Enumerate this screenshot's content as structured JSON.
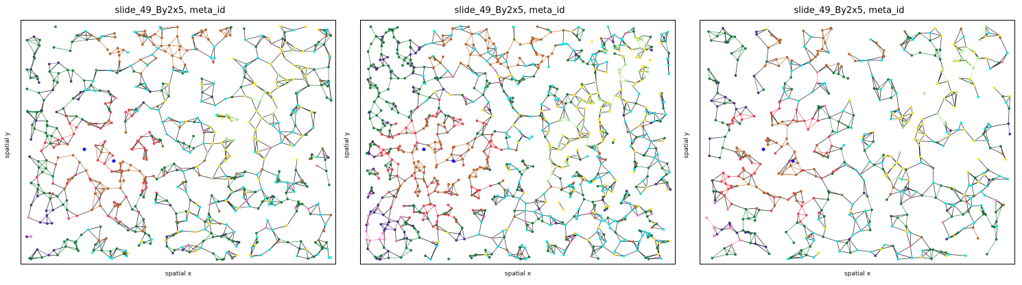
{
  "chart_data": [
    {
      "type": "scatter",
      "title": "slide_49_By2x5, meta_id",
      "xlabel": "spatial x",
      "ylabel": "spatial y",
      "grid": false,
      "ticks": "none",
      "legend": "none",
      "variant": "base"
    },
    {
      "type": "scatter",
      "title": "slide_49_By2x5, meta_id",
      "xlabel": "spatial x",
      "ylabel": "spatial y",
      "grid": false,
      "ticks": "none",
      "legend": "none",
      "variant": "dense"
    },
    {
      "type": "scatter",
      "title": "slide_49_By2x5, meta_id",
      "xlabel": "spatial x",
      "ylabel": "spatial y",
      "grid": false,
      "ticks": "none",
      "legend": "none",
      "variant": "sparse"
    }
  ],
  "palette": {
    "green": "#1a7a3a",
    "cyan": "#00e5ee",
    "red": "#e8414a",
    "brown": "#b5652a",
    "yellow": "#f5e61a",
    "purple": "#4b2b8a",
    "pink": "#f07ac8",
    "lightgreen": "#a8e08a",
    "blue": "#1010ff"
  }
}
